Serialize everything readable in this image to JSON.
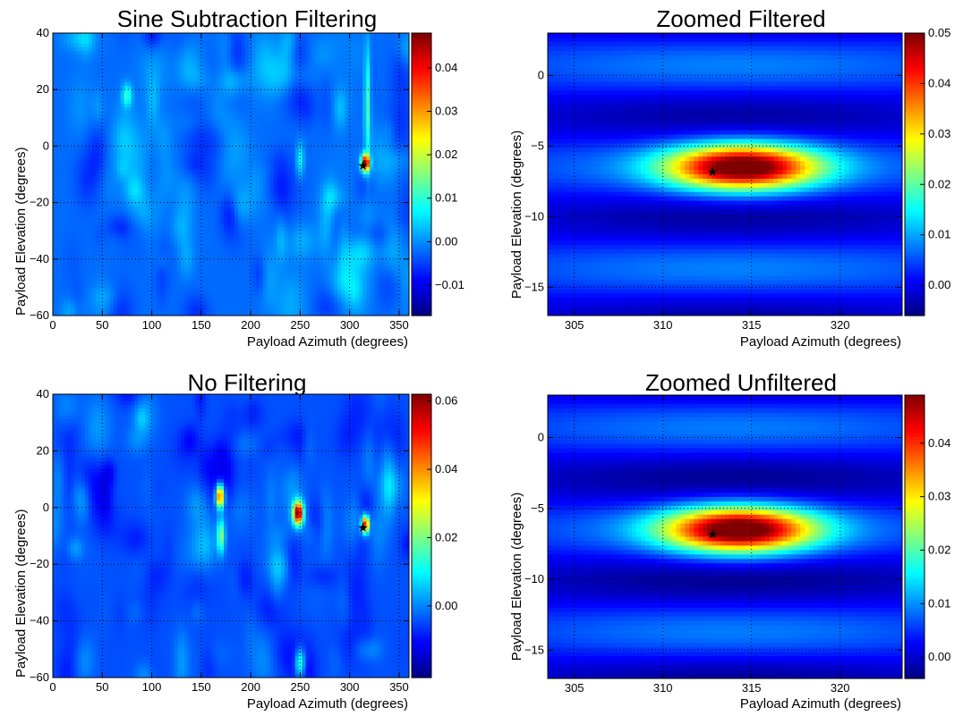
{
  "chart_data": [
    {
      "type": "heatmap",
      "title": "Sine Subtraction Filtering",
      "xlabel": "Payload Azimuth (degrees)",
      "ylabel": "Payload Elevation (degrees)",
      "xlim": [
        0,
        360
      ],
      "ylim": [
        -60,
        40
      ],
      "xticks": [
        0,
        50,
        100,
        150,
        200,
        250,
        300,
        350
      ],
      "yticks": [
        -60,
        -40,
        -20,
        0,
        20,
        40
      ],
      "grid": true,
      "colorbar": {
        "range": [
          -0.017,
          0.048
        ],
        "ticks": [
          -0.01,
          0.0,
          0.01,
          0.02,
          0.03,
          0.04
        ],
        "labels": [
          "−0.01",
          "0.00",
          "0.01",
          "0.02",
          "0.03",
          "0.04"
        ]
      },
      "background_level": -0.002,
      "peaks": [
        {
          "x": 316,
          "y": -6,
          "value": 0.048,
          "sx": 4,
          "sy": 3
        },
        {
          "x": 318,
          "y": 15,
          "value": 0.012,
          "sx": 3,
          "sy": 20
        },
        {
          "x": 250,
          "y": -5,
          "value": 0.008,
          "sx": 4,
          "sy": 6
        },
        {
          "x": 75,
          "y": 18,
          "value": 0.01,
          "sx": 5,
          "sy": 4
        }
      ],
      "marker": {
        "x": 313.5,
        "y": -6.8,
        "symbol": "star"
      }
    },
    {
      "type": "heatmap",
      "title": "Zoomed Filtered",
      "xlabel": "Payload Azimuth (degrees)",
      "ylabel": "Payload Elevation (degrees)",
      "xlim": [
        303.5,
        323.5
      ],
      "ylim": [
        -17,
        3
      ],
      "xticks": [
        305,
        310,
        315,
        320
      ],
      "yticks": [
        -15,
        -10,
        -5,
        0
      ],
      "grid": true,
      "colorbar": {
        "range": [
          -0.006,
          0.05
        ],
        "ticks": [
          0.0,
          0.01,
          0.02,
          0.03,
          0.04,
          0.05
        ],
        "labels": [
          "0.00",
          "0.01",
          "0.02",
          "0.03",
          "0.04",
          "0.05"
        ]
      },
      "background_level": 0.002,
      "peaks": [
        {
          "x": 314.5,
          "y": -6.5,
          "value": 0.05,
          "sx": 4.2,
          "sy": 1.6
        }
      ],
      "marker": {
        "x": 312.8,
        "y": -6.8,
        "symbol": "star"
      }
    },
    {
      "type": "heatmap",
      "title": "No Filtering",
      "xlabel": "Payload Azimuth (degrees)",
      "ylabel": "Payload Elevation (degrees)",
      "xlim": [
        0,
        360
      ],
      "ylim": [
        -60,
        40
      ],
      "xticks": [
        0,
        50,
        100,
        150,
        200,
        250,
        300,
        350
      ],
      "yticks": [
        -60,
        -40,
        -20,
        0,
        20,
        40
      ],
      "grid": true,
      "colorbar": {
        "range": [
          -0.021,
          0.062
        ],
        "ticks": [
          0.0,
          0.02,
          0.04,
          0.06
        ],
        "labels": [
          "0.00",
          "0.02",
          "0.04",
          "0.06"
        ]
      },
      "background_level": -0.004,
      "peaks": [
        {
          "x": 248,
          "y": -2,
          "value": 0.062,
          "sx": 5,
          "sy": 4
        },
        {
          "x": 169,
          "y": 4,
          "value": 0.05,
          "sx": 4,
          "sy": 4
        },
        {
          "x": 316,
          "y": -6,
          "value": 0.055,
          "sx": 3.5,
          "sy": 3
        },
        {
          "x": 170,
          "y": -10,
          "value": 0.02,
          "sx": 4,
          "sy": 6
        },
        {
          "x": 250,
          "y": -55,
          "value": 0.02,
          "sx": 5,
          "sy": 5
        }
      ],
      "marker": {
        "x": 313.5,
        "y": -7,
        "symbol": "star"
      }
    },
    {
      "type": "heatmap",
      "title": "Zoomed Unfiltered",
      "xlabel": "Payload Azimuth (degrees)",
      "ylabel": "Payload Elevation (degrees)",
      "xlim": [
        303.5,
        323.5
      ],
      "ylim": [
        -17,
        3
      ],
      "xticks": [
        305,
        310,
        315,
        320
      ],
      "yticks": [
        -15,
        -10,
        -5,
        0
      ],
      "grid": true,
      "colorbar": {
        "range": [
          -0.004,
          0.049
        ],
        "ticks": [
          0.0,
          0.01,
          0.02,
          0.03,
          0.04
        ],
        "labels": [
          "0.00",
          "0.01",
          "0.02",
          "0.03",
          "0.04"
        ]
      },
      "background_level": 0.003,
      "peaks": [
        {
          "x": 314.3,
          "y": -6.5,
          "value": 0.049,
          "sx": 4.2,
          "sy": 1.6
        }
      ],
      "marker": {
        "x": 312.8,
        "y": -6.8,
        "symbol": "star"
      }
    }
  ]
}
